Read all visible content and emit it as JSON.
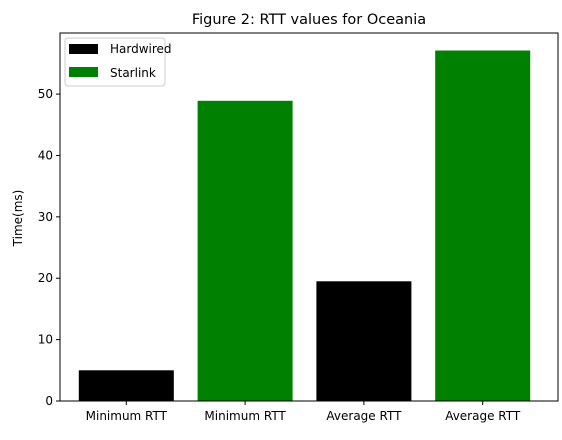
{
  "chart_data": {
    "type": "bar",
    "title": "Figure 2: RTT values for Oceania",
    "xlabel": "",
    "ylabel": "Time(ms)",
    "categories": [
      "Minimum RTT",
      "Minimum RTT",
      "Average RTT",
      "Average RTT"
    ],
    "values": [
      5.0,
      48.9,
      19.5,
      57.1
    ],
    "bar_series": [
      "Hardwired",
      "Starlink",
      "Hardwired",
      "Starlink"
    ],
    "legend": {
      "position": "upper-left",
      "entries": [
        {
          "label": "Hardwired",
          "color": "#000000"
        },
        {
          "label": "Starlink",
          "color": "#008000"
        }
      ]
    },
    "ylim": [
      0,
      59.95
    ],
    "yticks": [
      0,
      10,
      20,
      30,
      40,
      50
    ],
    "grid": false
  }
}
